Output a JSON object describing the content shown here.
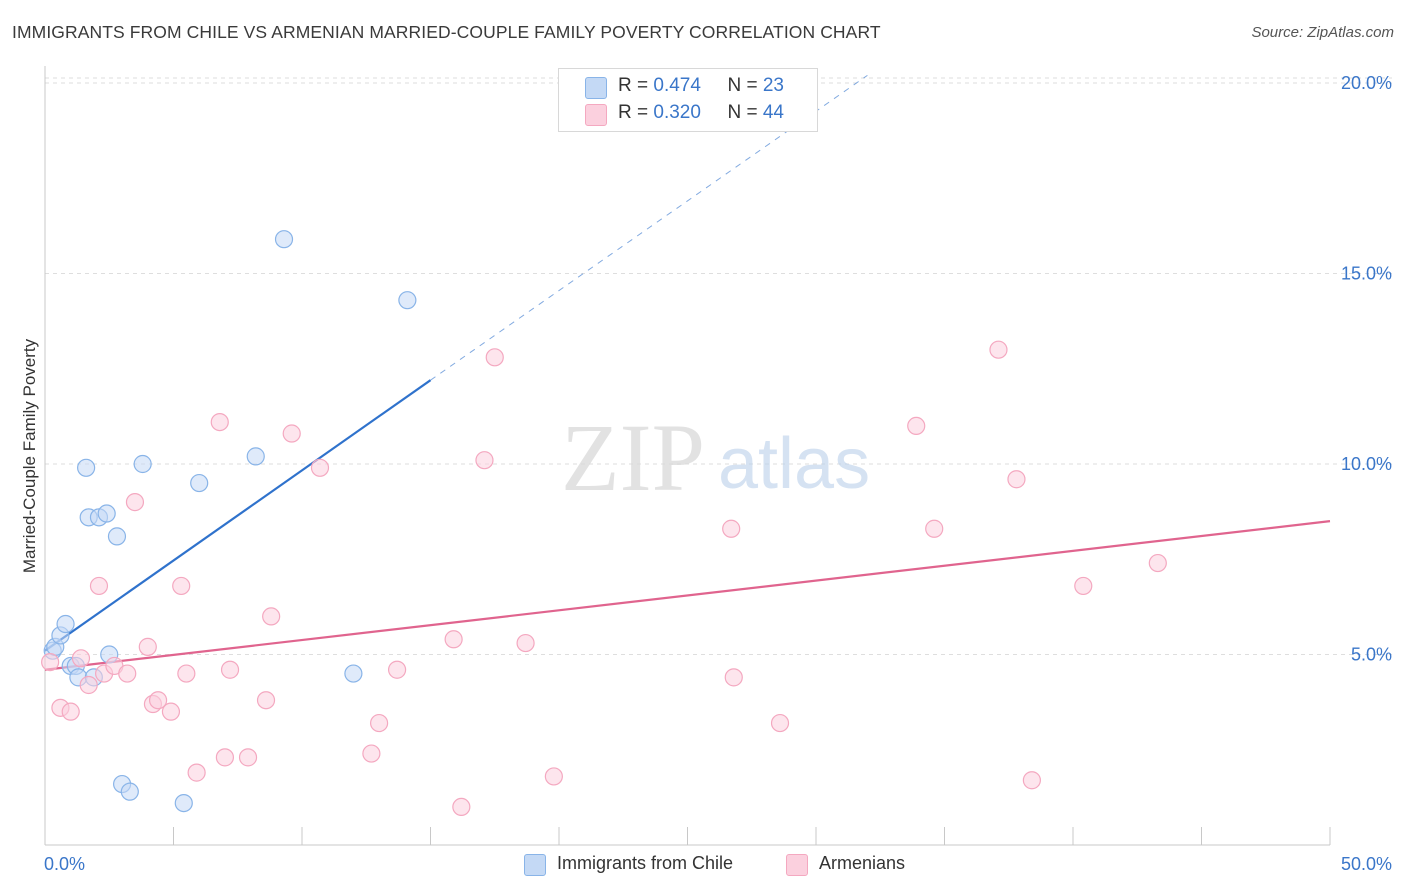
{
  "title": "IMMIGRANTS FROM CHILE VS ARMENIAN MARRIED-COUPLE FAMILY POVERTY CORRELATION CHART",
  "source": "Source: ZipAtlas.com",
  "watermark": {
    "zip": "ZIP",
    "atlas": "atlas"
  },
  "legend_top": {
    "rows": [
      {
        "r_label": "R = ",
        "r_value": "0.474",
        "n_label": "N = ",
        "n_value": "23"
      },
      {
        "r_label": "R = ",
        "r_value": "0.320",
        "n_label": "N = ",
        "n_value": "44"
      }
    ]
  },
  "chart_data": {
    "type": "scatter",
    "title": "IMMIGRANTS FROM CHILE VS ARMENIAN MARRIED-COUPLE FAMILY POVERTY CORRELATION CHART",
    "xlabel": "",
    "ylabel": "Married-Couple Family Poverty",
    "xlim": [
      0,
      50
    ],
    "ylim": [
      0,
      20.5
    ],
    "x_tick_labels": [
      "0.0%",
      "50.0%"
    ],
    "y_ticks": [
      5,
      10,
      15,
      20
    ],
    "y_tick_labels": [
      "5.0%",
      "10.0%",
      "15.0%",
      "20.0%"
    ],
    "grid": true,
    "legend_position": "bottom",
    "series": [
      {
        "name": "Immigrants from Chile",
        "color": "#89b4e8",
        "line_color": "#2f72cc",
        "r": 0.474,
        "n": 23,
        "trend": {
          "x0": 0.0,
          "y0": 5.1,
          "x1": 15.0,
          "y1": 12.2,
          "dash_to_x": 32.0,
          "dash_to_y": 20.2
        },
        "points": [
          [
            0.3,
            5.1
          ],
          [
            0.4,
            5.2
          ],
          [
            0.6,
            5.5
          ],
          [
            0.8,
            5.8
          ],
          [
            1.0,
            4.7
          ],
          [
            1.2,
            4.7
          ],
          [
            1.3,
            4.4
          ],
          [
            1.6,
            9.9
          ],
          [
            1.7,
            8.6
          ],
          [
            2.1,
            8.6
          ],
          [
            2.4,
            8.7
          ],
          [
            2.5,
            5.0
          ],
          [
            2.8,
            8.1
          ],
          [
            1.9,
            4.4
          ],
          [
            3.0,
            1.6
          ],
          [
            3.3,
            1.4
          ],
          [
            3.8,
            10.0
          ],
          [
            5.4,
            1.1
          ],
          [
            6.0,
            9.5
          ],
          [
            8.2,
            10.2
          ],
          [
            9.3,
            15.9
          ],
          [
            12.0,
            4.5
          ],
          [
            14.1,
            14.3
          ]
        ]
      },
      {
        "name": "Armenians",
        "color": "#f4a8c0",
        "line_color": "#e0648e",
        "r": 0.32,
        "n": 44,
        "trend": {
          "x0": 0.0,
          "y0": 4.6,
          "x1": 50.0,
          "y1": 8.5
        },
        "points": [
          [
            0.2,
            4.8
          ],
          [
            0.6,
            3.6
          ],
          [
            1.0,
            3.5
          ],
          [
            1.4,
            4.9
          ],
          [
            1.7,
            4.2
          ],
          [
            2.1,
            6.8
          ],
          [
            2.3,
            4.5
          ],
          [
            2.7,
            4.7
          ],
          [
            3.2,
            4.5
          ],
          [
            3.5,
            9.0
          ],
          [
            4.0,
            5.2
          ],
          [
            4.2,
            3.7
          ],
          [
            4.4,
            3.8
          ],
          [
            4.9,
            3.5
          ],
          [
            5.3,
            6.8
          ],
          [
            5.5,
            4.5
          ],
          [
            5.9,
            1.9
          ],
          [
            6.8,
            11.1
          ],
          [
            7.0,
            2.3
          ],
          [
            7.2,
            4.6
          ],
          [
            7.9,
            2.3
          ],
          [
            8.6,
            3.8
          ],
          [
            8.8,
            6.0
          ],
          [
            9.6,
            10.8
          ],
          [
            10.7,
            9.9
          ],
          [
            12.7,
            2.4
          ],
          [
            13.0,
            3.2
          ],
          [
            13.7,
            4.6
          ],
          [
            15.9,
            5.4
          ],
          [
            16.2,
            1.0
          ],
          [
            17.1,
            10.1
          ],
          [
            17.5,
            12.8
          ],
          [
            18.7,
            5.3
          ],
          [
            19.8,
            1.8
          ],
          [
            26.7,
            8.3
          ],
          [
            26.8,
            4.4
          ],
          [
            28.6,
            3.2
          ],
          [
            33.9,
            11.0
          ],
          [
            34.6,
            8.3
          ],
          [
            37.1,
            13.0
          ],
          [
            37.8,
            9.6
          ],
          [
            38.4,
            1.7
          ],
          [
            40.4,
            6.8
          ],
          [
            43.3,
            7.4
          ]
        ]
      }
    ]
  }
}
